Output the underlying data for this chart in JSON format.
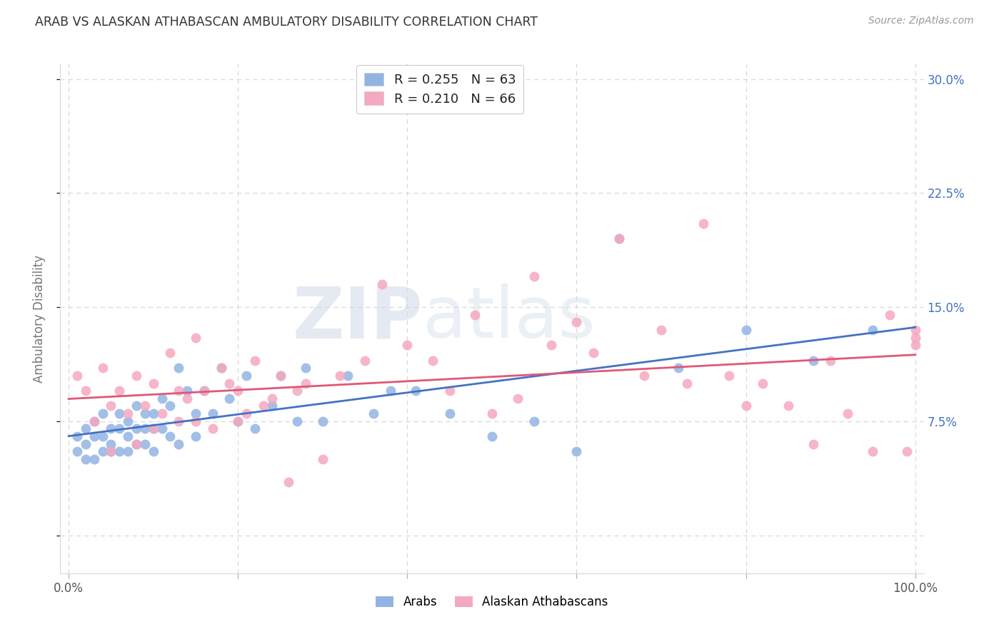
{
  "title": "ARAB VS ALASKAN ATHABASCAN AMBULATORY DISABILITY CORRELATION CHART",
  "source": "Source: ZipAtlas.com",
  "ylabel": "Ambulatory Disability",
  "arab_color": "#92b4e3",
  "athabascan_color": "#f5a8c0",
  "arab_line_color": "#4472c4",
  "athabascan_line_color": "#e05878",
  "arab_R": 0.255,
  "arab_N": 63,
  "athabascan_R": 0.21,
  "athabascan_N": 66,
  "background_color": "#ffffff",
  "grid_color": "#d8d8d8",
  "title_color": "#333333",
  "source_color": "#999999",
  "tick_color": "#4472c4",
  "watermark_color": "#d0d8e8",
  "arab_label": "Arabs",
  "athabascan_label": "Alaskan Athabascans",
  "arab_x": [
    1,
    1,
    2,
    2,
    2,
    3,
    3,
    3,
    4,
    4,
    4,
    5,
    5,
    5,
    6,
    6,
    6,
    7,
    7,
    7,
    8,
    8,
    8,
    9,
    9,
    9,
    10,
    10,
    10,
    11,
    11,
    12,
    12,
    13,
    13,
    14,
    15,
    15,
    16,
    17,
    18,
    19,
    20,
    21,
    22,
    24,
    25,
    27,
    28,
    30,
    33,
    36,
    38,
    41,
    45,
    50,
    55,
    60,
    65,
    72,
    80,
    88,
    95
  ],
  "arab_y": [
    6.5,
    5.5,
    7.0,
    6.0,
    5.0,
    7.5,
    6.5,
    5.0,
    8.0,
    6.5,
    5.5,
    7.0,
    6.0,
    5.5,
    8.0,
    7.0,
    5.5,
    7.5,
    6.5,
    5.5,
    8.5,
    7.0,
    6.0,
    8.0,
    7.0,
    6.0,
    8.0,
    7.0,
    5.5,
    9.0,
    7.0,
    8.5,
    6.5,
    11.0,
    6.0,
    9.5,
    8.0,
    6.5,
    9.5,
    8.0,
    11.0,
    9.0,
    7.5,
    10.5,
    7.0,
    8.5,
    10.5,
    7.5,
    11.0,
    7.5,
    10.5,
    8.0,
    9.5,
    9.5,
    8.0,
    6.5,
    7.5,
    5.5,
    19.5,
    11.0,
    13.5,
    11.5,
    13.5
  ],
  "athabascan_x": [
    1,
    2,
    3,
    4,
    5,
    5,
    6,
    7,
    8,
    8,
    9,
    10,
    10,
    11,
    12,
    13,
    13,
    14,
    15,
    15,
    16,
    17,
    18,
    19,
    20,
    20,
    21,
    22,
    23,
    24,
    25,
    26,
    27,
    28,
    30,
    32,
    35,
    37,
    40,
    43,
    45,
    48,
    50,
    53,
    55,
    57,
    60,
    62,
    65,
    68,
    70,
    73,
    75,
    78,
    80,
    82,
    85,
    88,
    90,
    92,
    95,
    97,
    99,
    100,
    100,
    100
  ],
  "athabascan_y": [
    10.5,
    9.5,
    7.5,
    11.0,
    8.5,
    5.5,
    9.5,
    8.0,
    10.5,
    6.0,
    8.5,
    10.0,
    7.0,
    8.0,
    12.0,
    9.5,
    7.5,
    9.0,
    13.0,
    7.5,
    9.5,
    7.0,
    11.0,
    10.0,
    9.5,
    7.5,
    8.0,
    11.5,
    8.5,
    9.0,
    10.5,
    3.5,
    9.5,
    10.0,
    5.0,
    10.5,
    11.5,
    16.5,
    12.5,
    11.5,
    9.5,
    14.5,
    8.0,
    9.0,
    17.0,
    12.5,
    14.0,
    12.0,
    19.5,
    10.5,
    13.5,
    10.0,
    20.5,
    10.5,
    8.5,
    10.0,
    8.5,
    6.0,
    11.5,
    8.0,
    5.5,
    14.5,
    5.5,
    13.5,
    12.5,
    13.0
  ],
  "xlim": [
    -1,
    101
  ],
  "ylim": [
    -2.5,
    31
  ],
  "yticks": [
    0,
    7.5,
    15.0,
    22.5,
    30.0
  ],
  "xticks": [
    0,
    20,
    40,
    60,
    80,
    100
  ],
  "marker_size": 100
}
